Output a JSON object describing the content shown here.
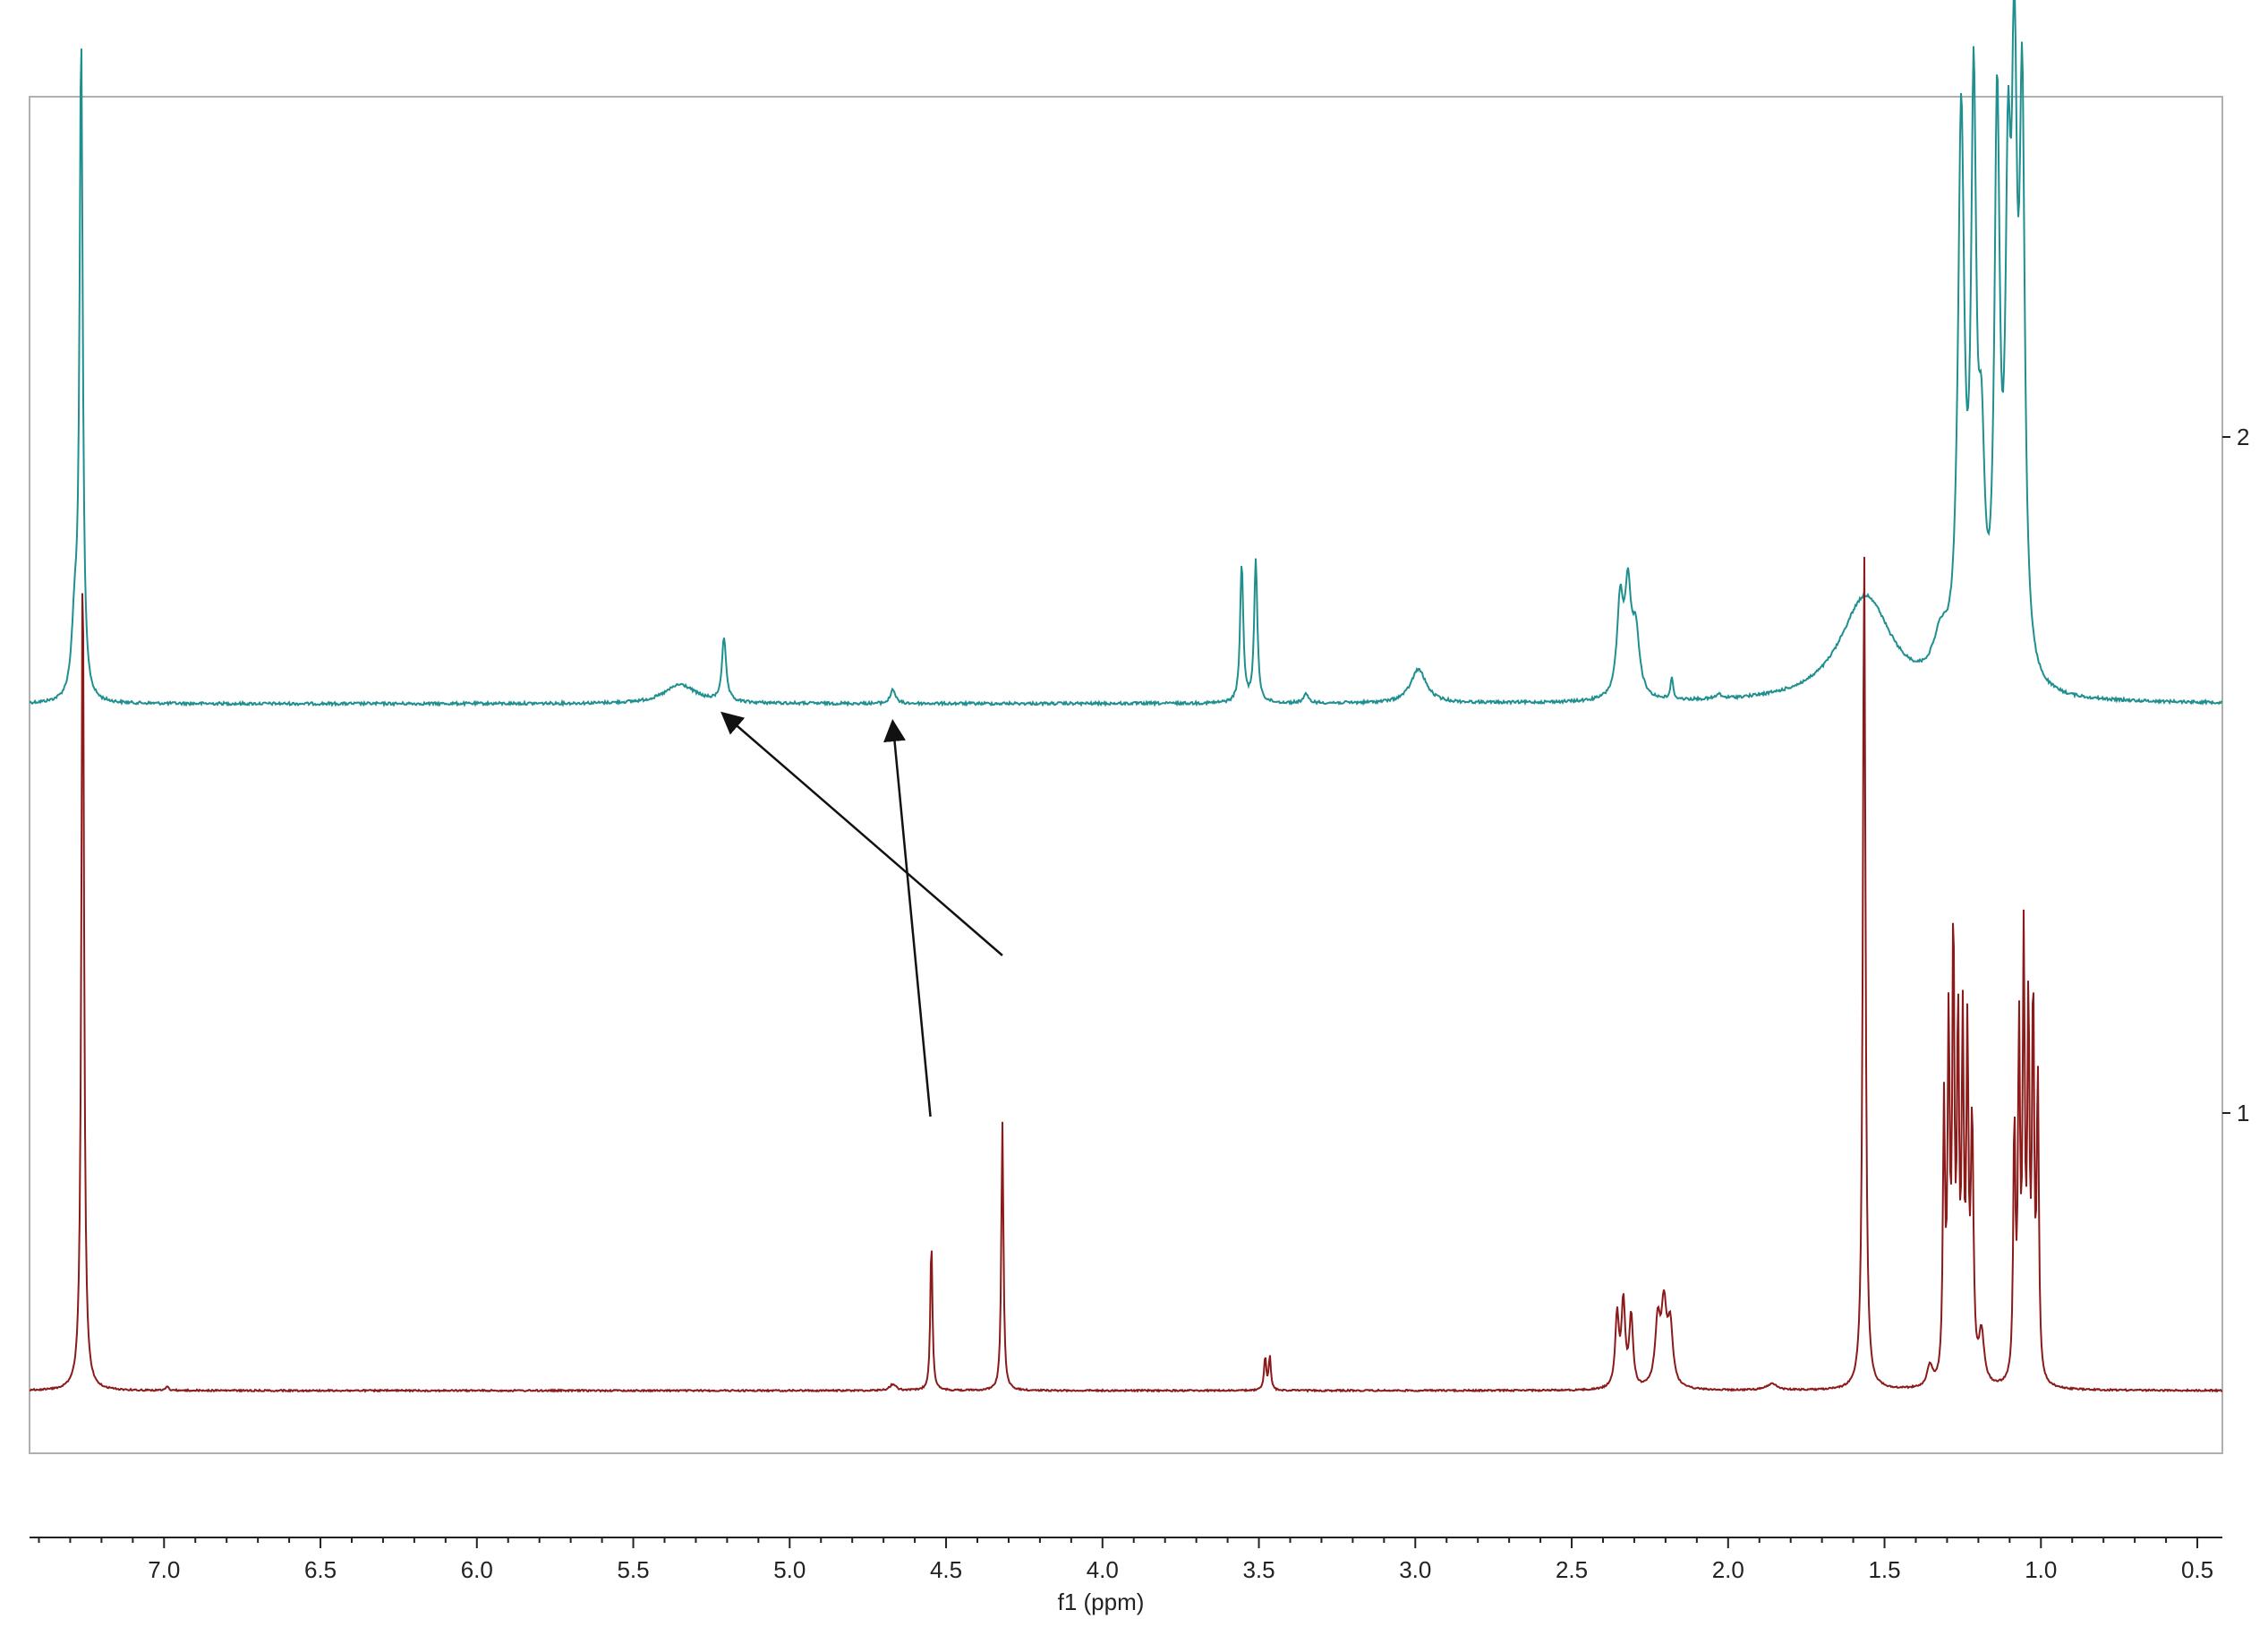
{
  "chart_data": {
    "type": "line",
    "title": "",
    "xlabel": "f1 (ppm)",
    "ylabel": "",
    "x_reversed": true,
    "xlim": [
      7.43,
      0.42
    ],
    "x_ticks": [
      "7.0",
      "6.5",
      "6.0",
      "5.5",
      "5.0",
      "4.5",
      "4.0",
      "3.5",
      "3.0",
      "2.5",
      "2.0",
      "1.5",
      "1.0",
      "0.5"
    ],
    "spectrum_labels": [
      "2",
      "1"
    ],
    "grid": false,
    "legend": "none",
    "colors": {
      "top_trace": "#1f8f8f",
      "bottom_trace": "#8b1a1a",
      "frame": "#b0b0b0",
      "axis": "#222222",
      "arrows": "#111111"
    },
    "series": [
      {
        "label": "2",
        "baseline": 0.0,
        "peaks": [
          {
            "ppm": 7.265,
            "height": 1.55,
            "width": 0.006
          },
          {
            "ppm": 7.285,
            "height": 0.18,
            "width": 0.012
          },
          {
            "ppm": 5.35,
            "height": 0.045,
            "width": 0.06
          },
          {
            "ppm": 5.21,
            "height": 0.15,
            "width": 0.008
          },
          {
            "ppm": 4.67,
            "height": 0.035,
            "width": 0.009
          },
          {
            "ppm": 3.555,
            "height": 0.33,
            "width": 0.006
          },
          {
            "ppm": 3.51,
            "height": 0.34,
            "width": 0.006
          },
          {
            "ppm": 3.35,
            "height": 0.02,
            "width": 0.01
          },
          {
            "ppm": 2.99,
            "height": 0.08,
            "width": 0.03
          },
          {
            "ppm": 2.345,
            "height": 0.22,
            "width": 0.012
          },
          {
            "ppm": 2.32,
            "height": 0.24,
            "width": 0.012
          },
          {
            "ppm": 2.295,
            "height": 0.15,
            "width": 0.014
          },
          {
            "ppm": 2.18,
            "height": 0.05,
            "width": 0.005
          },
          {
            "ppm": 2.03,
            "height": 0.01,
            "width": 0.01
          },
          {
            "ppm": 1.56,
            "height": 0.25,
            "width": 0.1
          },
          {
            "ppm": 1.32,
            "height": 0.1,
            "width": 0.03
          },
          {
            "ppm": 1.255,
            "height": 1.3,
            "width": 0.012
          },
          {
            "ppm": 1.215,
            "height": 1.3,
            "width": 0.01
          },
          {
            "ppm": 1.19,
            "height": 0.45,
            "width": 0.012
          },
          {
            "ppm": 1.14,
            "height": 1.3,
            "width": 0.01
          },
          {
            "ppm": 1.105,
            "height": 1.0,
            "width": 0.01
          },
          {
            "ppm": 1.085,
            "height": 1.3,
            "width": 0.01
          },
          {
            "ppm": 1.06,
            "height": 1.3,
            "width": 0.01
          }
        ]
      },
      {
        "label": "1",
        "baseline": 0.0,
        "peaks": [
          {
            "ppm": 7.26,
            "height": 2.0,
            "width": 0.005
          },
          {
            "ppm": 6.99,
            "height": 0.01,
            "width": 0.005
          },
          {
            "ppm": 4.67,
            "height": 0.015,
            "width": 0.012
          },
          {
            "ppm": 4.547,
            "height": 0.36,
            "width": 0.004
          },
          {
            "ppm": 4.32,
            "height": 0.64,
            "width": 0.004
          },
          {
            "ppm": 3.48,
            "height": 0.08,
            "width": 0.004
          },
          {
            "ppm": 3.465,
            "height": 0.08,
            "width": 0.004
          },
          {
            "ppm": 2.355,
            "height": 0.17,
            "width": 0.007
          },
          {
            "ppm": 2.335,
            "height": 0.2,
            "width": 0.007
          },
          {
            "ppm": 2.31,
            "height": 0.17,
            "width": 0.007
          },
          {
            "ppm": 2.225,
            "height": 0.15,
            "width": 0.01
          },
          {
            "ppm": 2.205,
            "height": 0.18,
            "width": 0.01
          },
          {
            "ppm": 2.185,
            "height": 0.14,
            "width": 0.01
          },
          {
            "ppm": 1.86,
            "height": 0.015,
            "width": 0.02
          },
          {
            "ppm": 1.565,
            "height": 2.0,
            "width": 0.005
          },
          {
            "ppm": 1.355,
            "height": 0.05,
            "width": 0.01
          },
          {
            "ppm": 1.31,
            "height": 0.64,
            "width": 0.004
          },
          {
            "ppm": 1.295,
            "height": 0.82,
            "width": 0.004
          },
          {
            "ppm": 1.28,
            "height": 1.05,
            "width": 0.004
          },
          {
            "ppm": 1.265,
            "height": 0.82,
            "width": 0.004
          },
          {
            "ppm": 1.25,
            "height": 0.8,
            "width": 0.004
          },
          {
            "ppm": 1.235,
            "height": 0.78,
            "width": 0.004
          },
          {
            "ppm": 1.22,
            "height": 0.6,
            "width": 0.005
          },
          {
            "ppm": 1.19,
            "height": 0.12,
            "width": 0.01
          },
          {
            "ppm": 1.085,
            "height": 0.6,
            "width": 0.004
          },
          {
            "ppm": 1.07,
            "height": 0.8,
            "width": 0.004
          },
          {
            "ppm": 1.055,
            "height": 1.0,
            "width": 0.004
          },
          {
            "ppm": 1.04,
            "height": 0.85,
            "width": 0.004
          },
          {
            "ppm": 1.025,
            "height": 0.9,
            "width": 0.004
          },
          {
            "ppm": 1.01,
            "height": 0.7,
            "width": 0.004
          }
        ]
      }
    ],
    "annotations": [
      {
        "type": "arrow",
        "from_ppm": 4.55,
        "to_ppm": 4.67
      },
      {
        "type": "arrow",
        "from_ppm": 4.32,
        "to_ppm": 5.21
      }
    ]
  }
}
